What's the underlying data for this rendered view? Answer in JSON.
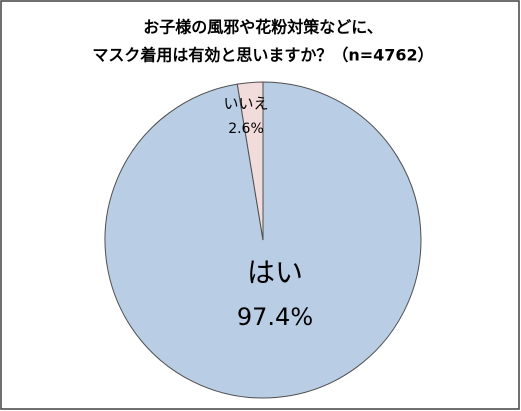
{
  "chart_data": {
    "type": "pie",
    "title": [
      "お子様の風邪や花粉対策などに、",
      "マスク着用は有効と思いますか？（n=4762）"
    ],
    "categories": [
      "はい",
      "いいえ"
    ],
    "values": [
      97.4,
      2.6
    ],
    "value_labels": [
      "97.4%",
      "2.6%"
    ],
    "colors": [
      "#b9cde5",
      "#f2dcdb"
    ]
  }
}
